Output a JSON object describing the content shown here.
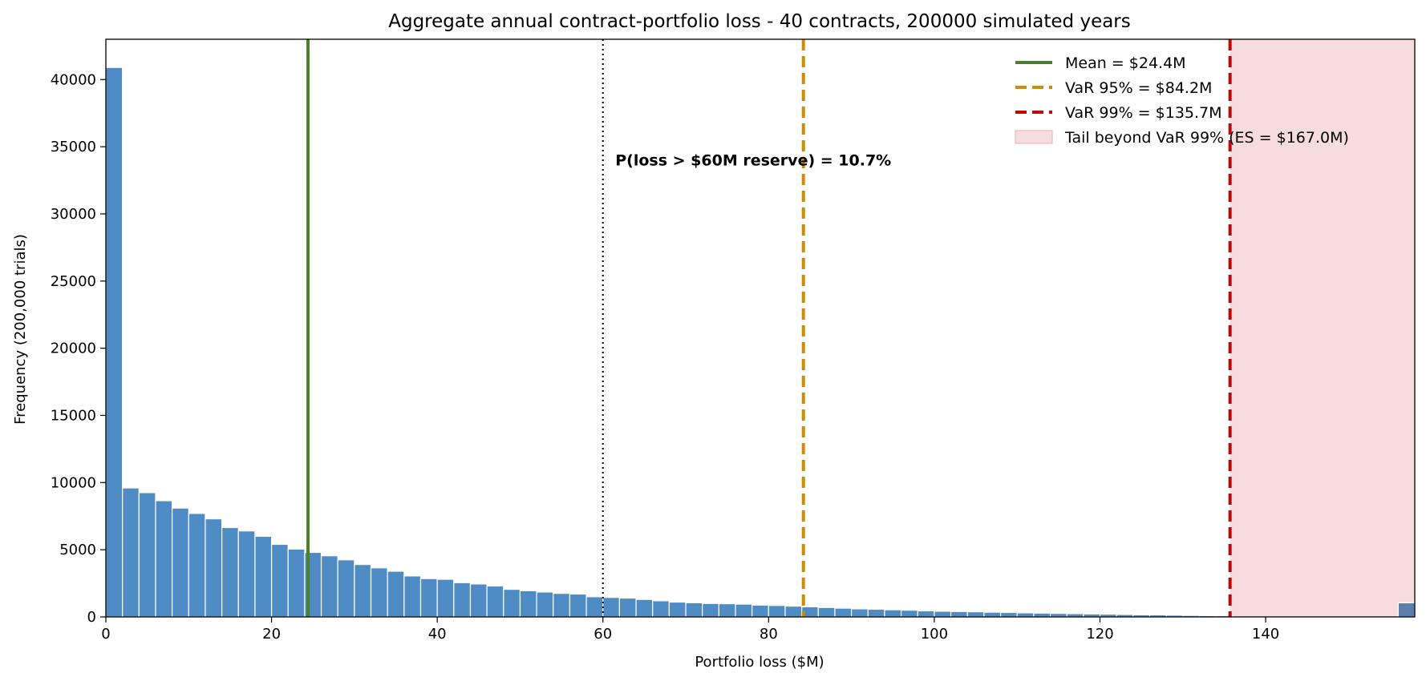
{
  "chart_data": {
    "type": "bar",
    "title": "Aggregate annual contract-portfolio loss - 40 contracts, 200000 simulated years",
    "xlabel": "Portfolio loss  ($M)",
    "ylabel": "Frequency  (200,000 trials)",
    "xlim": [
      0,
      158
    ],
    "ylim": [
      0,
      43000
    ],
    "x_ticks": [
      0,
      20,
      40,
      60,
      80,
      100,
      120,
      140
    ],
    "y_ticks": [
      0,
      5000,
      10000,
      15000,
      20000,
      25000,
      30000,
      35000,
      40000
    ],
    "bin_width": 2,
    "bin_starts": [
      0,
      2,
      4,
      6,
      8,
      10,
      12,
      14,
      16,
      18,
      20,
      22,
      24,
      26,
      28,
      30,
      32,
      34,
      36,
      38,
      40,
      42,
      44,
      46,
      48,
      50,
      52,
      54,
      56,
      58,
      60,
      62,
      64,
      66,
      68,
      70,
      72,
      74,
      76,
      78,
      80,
      82,
      84,
      86,
      88,
      90,
      92,
      94,
      96,
      98,
      100,
      102,
      104,
      106,
      108,
      110,
      112,
      114,
      116,
      118,
      120,
      122,
      124,
      126,
      128,
      130,
      132,
      134,
      156
    ],
    "counts": [
      40900,
      9600,
      9250,
      8650,
      8100,
      7700,
      7300,
      6650,
      6400,
      6000,
      5400,
      5050,
      4800,
      4550,
      4250,
      3900,
      3650,
      3400,
      3050,
      2850,
      2800,
      2550,
      2450,
      2300,
      2050,
      1950,
      1850,
      1750,
      1700,
      1500,
      1450,
      1400,
      1300,
      1200,
      1100,
      1050,
      1000,
      980,
      950,
      880,
      850,
      800,
      750,
      700,
      650,
      600,
      570,
      530,
      500,
      450,
      420,
      400,
      380,
      350,
      330,
      300,
      280,
      260,
      240,
      220,
      200,
      180,
      160,
      150,
      130,
      110,
      95,
      90,
      1050
    ],
    "bar_color": "#4f8bc4",
    "tail_bar_color": "#5b7fad",
    "tail_region": {
      "from": 135.7,
      "to": 158,
      "color": "#f6dcdc"
    },
    "reference_lines": [
      {
        "name": "mean",
        "x": 24.4,
        "color": "#4e7f2e",
        "style": "solid",
        "label": "Mean = $24.4M"
      },
      {
        "name": "var95",
        "x": 84.2,
        "color": "#c98d0a",
        "style": "dashed",
        "label": "VaR 95% = $84.2M"
      },
      {
        "name": "var99",
        "x": 135.7,
        "color": "#bb0a0a",
        "style": "dashed",
        "label": "VaR 99% = $135.7M"
      },
      {
        "name": "reserve",
        "x": 60,
        "color": "#000000",
        "style": "dotted",
        "label": ""
      }
    ],
    "tail_legend_label": "Tail beyond VaR 99% (ES = $167.0M)",
    "annotation": {
      "text": "P(loss > $60M reserve) = 10.7%",
      "x": 61.5,
      "y": 33600
    },
    "legend_position": "top-right",
    "grid": false
  }
}
